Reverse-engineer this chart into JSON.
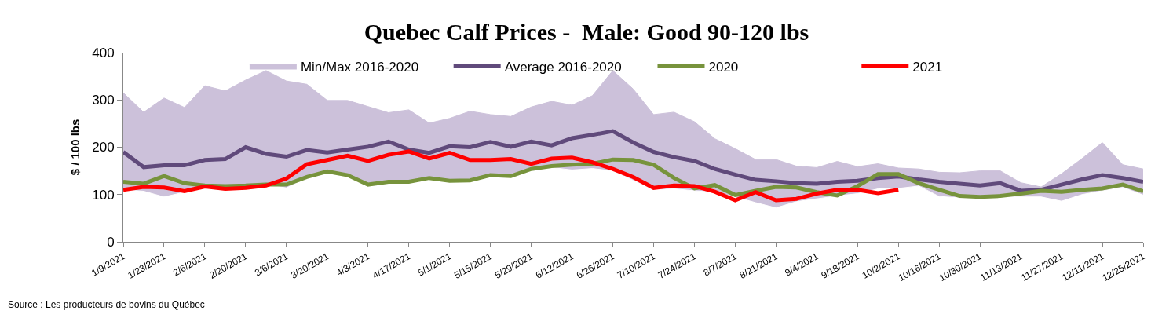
{
  "chart_data": {
    "type": "line",
    "title": "Quebec Calf Prices -  Male: Good 90-120 lbs",
    "ylabel": "$ / 100 lbs",
    "annotations": [
      "Source : Les producteurs de bovins du Québec"
    ],
    "categories": [
      "1/9/2021",
      null,
      "1/23/2021",
      null,
      "2/6/2021",
      null,
      "2/20/2021",
      null,
      "3/6/2021",
      null,
      "3/20/2021",
      null,
      "4/3/2021",
      null,
      "4/17/2021",
      null,
      "5/1/2021",
      null,
      "5/15/2021",
      null,
      "5/29/2021",
      null,
      "6/12/2021",
      null,
      "6/26/2021",
      null,
      "7/10/2021",
      null,
      "7/24/2021",
      null,
      "8/7/2021",
      null,
      "8/21/2021",
      null,
      "9/4/2021",
      null,
      "9/18/2021",
      null,
      "10/2/2021",
      null,
      "10/16/2021",
      null,
      "10/30/2021",
      null,
      "11/13/2021",
      null,
      "11/27/2021",
      null,
      "12/11/2021",
      null,
      "12/25/2021"
    ],
    "series": [
      {
        "name": "Min/Max 2016-2020",
        "type": "area",
        "color": "#ccc1da",
        "values": [
          315,
          274,
          304,
          284,
          330,
          319,
          342,
          362,
          340,
          333,
          299,
          299,
          286,
          273,
          279,
          251,
          261,
          276,
          269,
          265,
          285,
          297,
          289,
          309,
          362,
          323,
          269,
          274,
          254,
          218,
          197,
          174,
          174,
          160,
          157,
          170,
          159,
          165,
          156,
          154,
          147,
          146,
          150,
          150,
          125,
          116,
          144,
          176,
          210,
          163,
          154
        ]
      },
      {
        "type": "area",
        "color": "#ffffff",
        "values": [
          110,
          107,
          95,
          105,
          116,
          113,
          115,
          121,
          114,
          135,
          147,
          139,
          118,
          124,
          124,
          132,
          126,
          127,
          137,
          135,
          150,
          157,
          152,
          155,
          150,
          130,
          110,
          112,
          108,
          105,
          95,
          83,
          72,
          85,
          91,
          97,
          102,
          112,
          113,
          118,
          96,
          93,
          93,
          95,
          95,
          95,
          86,
          100,
          108,
          115,
          99
        ]
      },
      {
        "name": "Average 2016-2020",
        "color": "#604a7b",
        "values": [
          190,
          158,
          162,
          162,
          173,
          175,
          200,
          186,
          180,
          194,
          189,
          195,
          201,
          212,
          195,
          188,
          202,
          200,
          211,
          201,
          212,
          204,
          219,
          226,
          234,
          210,
          190,
          179,
          171,
          154,
          142,
          131,
          128,
          124,
          123,
          127,
          129,
          135,
          138,
          132,
          127,
          123,
          119,
          124,
          108,
          110,
          121,
          132,
          141,
          135,
          127
        ]
      },
      {
        "name": "2020",
        "color": "#77933c",
        "values": [
          127,
          123,
          139,
          124,
          119,
          118,
          119,
          121,
          121,
          137,
          149,
          141,
          121,
          127,
          127,
          135,
          129,
          130,
          141,
          139,
          154,
          160,
          163,
          165,
          174,
          173,
          163,
          135,
          113,
          120,
          99,
          108,
          116,
          115,
          105,
          98,
          118,
          143,
          143,
          124,
          110,
          97,
          95,
          97,
          102,
          108,
          106,
          110,
          113,
          121,
          107
        ]
      },
      {
        "name": "2021",
        "color": "#ff0000",
        "values": [
          110,
          116,
          115,
          107,
          117,
          112,
          114,
          119,
          134,
          164,
          173,
          182,
          171,
          184,
          191,
          176,
          188,
          173,
          173,
          175,
          165,
          176,
          178,
          168,
          154,
          137,
          114,
          119,
          118,
          106,
          88,
          105,
          88,
          91,
          102,
          110,
          110,
          103,
          110,
          null,
          null,
          null,
          null,
          null,
          null,
          null,
          null,
          null,
          null,
          null,
          null
        ]
      }
    ],
    "ylim": [
      0,
      400
    ],
    "yticks": [
      0,
      100,
      200,
      300,
      400
    ],
    "legend": "top"
  }
}
